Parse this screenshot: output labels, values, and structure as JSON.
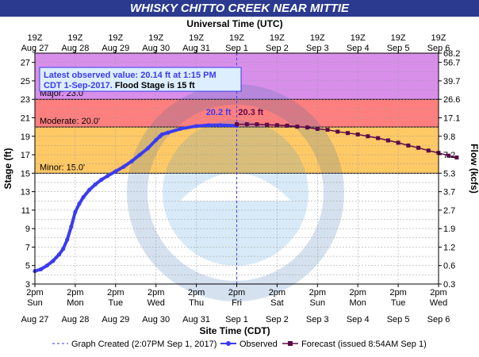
{
  "title": "WHISKY CHITTO CREEK NEAR MITTIE",
  "chart_data": {
    "type": "line",
    "top_axis_title": "Universal Time (UTC)",
    "xlabel": "Site Time (CDT)",
    "ylabel_left": "Stage (ft)",
    "ylabel_right": "Flow (kcfs)",
    "days": 9,
    "top_ticks": [
      {
        "day": 0,
        "l1": "19Z",
        "l2": "Aug 27"
      },
      {
        "day": 1,
        "l1": "19Z",
        "l2": "Aug 28"
      },
      {
        "day": 2,
        "l1": "19Z",
        "l2": "Aug 29"
      },
      {
        "day": 3,
        "l1": "19Z",
        "l2": "Aug 30"
      },
      {
        "day": 4,
        "l1": "19Z",
        "l2": "Aug 31"
      },
      {
        "day": 5,
        "l1": "19Z",
        "l2": "Sep 1"
      },
      {
        "day": 6,
        "l1": "19Z",
        "l2": "Sep 2"
      },
      {
        "day": 7,
        "l1": "19Z",
        "l2": "Sep 3"
      },
      {
        "day": 8,
        "l1": "19Z",
        "l2": "Sep 4"
      },
      {
        "day": 9,
        "l1": "19Z",
        "l2": "Sep 5"
      },
      {
        "day": 10,
        "l1": "19Z",
        "l2": "Sep 6"
      }
    ],
    "bottom_ticks": [
      {
        "day": 0,
        "l1": "2pm",
        "l2": "Sun",
        "l3": "Aug 27"
      },
      {
        "day": 1,
        "l1": "2pm",
        "l2": "Mon",
        "l3": "Aug 28"
      },
      {
        "day": 2,
        "l1": "2pm",
        "l2": "Tue",
        "l3": "Aug 29"
      },
      {
        "day": 3,
        "l1": "2pm",
        "l2": "Wed",
        "l3": "Aug 30"
      },
      {
        "day": 4,
        "l1": "2pm",
        "l2": "Thu",
        "l3": "Aug 31"
      },
      {
        "day": 5,
        "l1": "2pm",
        "l2": "Fri",
        "l3": "Sep 1"
      },
      {
        "day": 6,
        "l1": "2pm",
        "l2": "Sat",
        "l3": "Sep 2"
      },
      {
        "day": 7,
        "l1": "2pm",
        "l2": "Sun",
        "l3": "Sep 3"
      },
      {
        "day": 8,
        "l1": "2pm",
        "l2": "Mon",
        "l3": "Sep 4"
      },
      {
        "day": 9,
        "l1": "2pm",
        "l2": "Tue",
        "l3": "Sep 5"
      },
      {
        "day": 10,
        "l1": "2pm",
        "l2": "Wed",
        "l3": "Sep 6"
      }
    ],
    "ylim": [
      3,
      28
    ],
    "left_ticks": [
      3,
      5,
      7,
      9,
      11,
      13,
      15,
      17,
      19,
      21,
      23,
      25,
      27
    ],
    "right_ticks": [
      {
        "stage": 3,
        "label": "0.3"
      },
      {
        "stage": 5,
        "label": "0.6"
      },
      {
        "stage": 7,
        "label": "1.2"
      },
      {
        "stage": 9,
        "label": "1.9"
      },
      {
        "stage": 11,
        "label": "2.7"
      },
      {
        "stage": 13,
        "label": "3.7"
      },
      {
        "stage": 15,
        "label": "5.3"
      },
      {
        "stage": 17,
        "label": "7.2"
      },
      {
        "stage": 19,
        "label": "9.8"
      },
      {
        "stage": 21,
        "label": "17.1"
      },
      {
        "stage": 23,
        "label": "26.6"
      },
      {
        "stage": 25,
        "label": "39.7"
      },
      {
        "stage": 27,
        "label": "56.7"
      },
      {
        "stage": 28,
        "label": "68.2"
      }
    ],
    "flood_bands": [
      {
        "name": "Minor",
        "label": "Minor: 15.0'",
        "from": 15,
        "to": 20,
        "color": "#ffc966"
      },
      {
        "name": "Moderate",
        "label": "Moderate: 20.0'",
        "from": 20,
        "to": 23,
        "color": "#ff7f7f"
      },
      {
        "name": "Major",
        "label": "Major: 23.0'",
        "from": 23,
        "to": 28,
        "color": "#d88fea"
      }
    ],
    "graph_created_day": 5.0,
    "observed": {
      "name": "Observed",
      "color": "#3b3bf0",
      "points": [
        [
          0.0,
          4.4
        ],
        [
          0.15,
          4.6
        ],
        [
          0.3,
          5.0
        ],
        [
          0.45,
          5.5
        ],
        [
          0.6,
          6.2
        ],
        [
          0.7,
          6.8
        ],
        [
          0.8,
          7.8
        ],
        [
          0.9,
          9.2
        ],
        [
          1.0,
          10.8
        ],
        [
          1.1,
          11.7
        ],
        [
          1.2,
          12.4
        ],
        [
          1.35,
          13.2
        ],
        [
          1.5,
          13.8
        ],
        [
          1.65,
          14.3
        ],
        [
          1.8,
          14.7
        ],
        [
          2.0,
          15.2
        ],
        [
          2.2,
          15.7
        ],
        [
          2.4,
          16.3
        ],
        [
          2.6,
          17.0
        ],
        [
          2.8,
          17.7
        ],
        [
          3.0,
          18.6
        ],
        [
          3.1,
          19.0
        ],
        [
          3.15,
          19.2
        ],
        [
          3.3,
          19.4
        ],
        [
          3.6,
          19.8
        ],
        [
          4.0,
          20.1
        ],
        [
          4.3,
          20.2
        ],
        [
          4.6,
          20.2
        ],
        [
          5.0,
          20.14
        ]
      ]
    },
    "forecast": {
      "name": "Forecast (issued 8:54AM Sep 1)",
      "color": "#5a0a4a",
      "points": [
        [
          5.0,
          20.3
        ],
        [
          5.25,
          20.3
        ],
        [
          5.5,
          20.3
        ],
        [
          5.75,
          20.25
        ],
        [
          6.0,
          20.2
        ],
        [
          6.25,
          20.15
        ],
        [
          6.5,
          20.05
        ],
        [
          6.75,
          19.95
        ],
        [
          7.0,
          19.8
        ],
        [
          7.25,
          19.7
        ],
        [
          7.5,
          19.5
        ],
        [
          7.75,
          19.35
        ],
        [
          8.0,
          19.2
        ],
        [
          8.25,
          19.0
        ],
        [
          8.5,
          18.8
        ],
        [
          8.75,
          18.55
        ],
        [
          9.0,
          18.3
        ],
        [
          9.25,
          18.0
        ],
        [
          9.5,
          17.75
        ],
        [
          9.75,
          17.45
        ],
        [
          10.0,
          17.2
        ],
        [
          10.25,
          16.9
        ],
        [
          10.45,
          16.7
        ]
      ]
    },
    "annotation_observed": "20.2 ft",
    "annotation_forecast": "20.3 ft",
    "info_box": {
      "line1": "Latest observed value: 20.14 ft at 1:15 PM",
      "line2_part1": "CDT 1-Sep-2017.",
      "line2_part2": " Flood Stage is 15 ft"
    },
    "legend": {
      "created": "Graph Created (2:07PM Sep 1, 2017)",
      "observed": "Observed",
      "forecast": "Forecast (issued 8:54AM Sep 1)"
    }
  }
}
